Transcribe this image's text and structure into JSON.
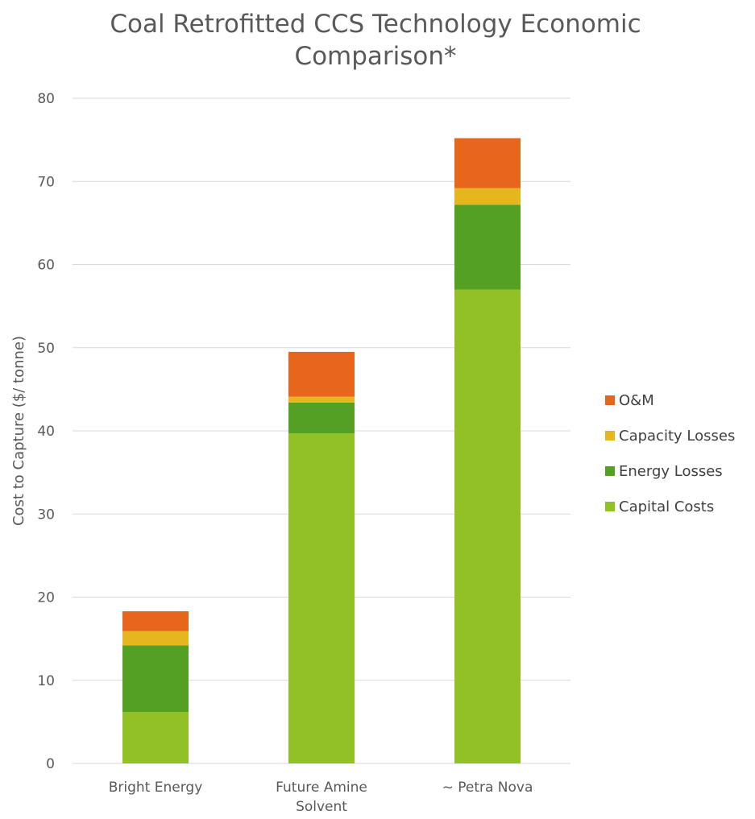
{
  "chart_data": {
    "type": "bar",
    "stacked": true,
    "title_lines": [
      "Coal Retrofitted CCS Technology Economic",
      "Comparison*"
    ],
    "xlabel": "",
    "ylabel": "Cost to Capture  ($/ tonne)",
    "ylim": [
      0,
      80
    ],
    "yticks": [
      0,
      10,
      20,
      30,
      40,
      50,
      60,
      70,
      80
    ],
    "grid": true,
    "legend_position": "right",
    "categories": [
      {
        "lines": [
          "Bright Energy"
        ]
      },
      {
        "lines": [
          "Future Amine",
          "Solvent"
        ]
      },
      {
        "lines": [
          "~ Petra Nova"
        ]
      }
    ],
    "series": [
      {
        "name": "Capital Costs",
        "color": "#92c027",
        "values": [
          6.2,
          39.7,
          57.0
        ]
      },
      {
        "name": "Energy Losses",
        "color": "#53a023",
        "values": [
          8.0,
          3.7,
          10.2
        ]
      },
      {
        "name": "Capacity Losses",
        "color": "#e6b61e",
        "values": [
          1.7,
          0.7,
          2.0
        ]
      },
      {
        "name": "O&M",
        "color": "#e8661b",
        "values": [
          2.4,
          5.4,
          6.0
        ]
      }
    ],
    "legend_order": [
      "O&M",
      "Capacity Losses",
      "Energy Losses",
      "Capital Costs"
    ]
  }
}
